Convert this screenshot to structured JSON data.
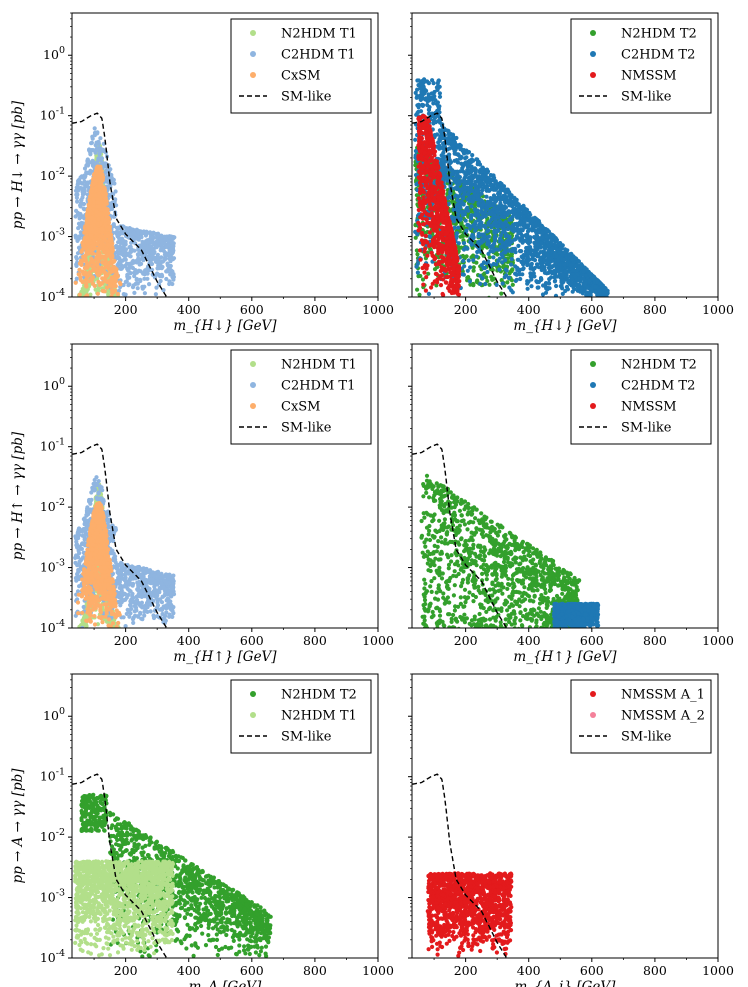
{
  "chart_data": [
    {
      "type": "scatter",
      "xlabel": "m_{H↓} [GeV]",
      "ylabel": "pp → H↓ → γγ [pb]",
      "xlim": [
        30,
        1000
      ],
      "ylim": [
        0.0001,
        5
      ],
      "yscale": "log",
      "x_ticks": [
        "200",
        "400",
        "600",
        "800",
        "1000"
      ],
      "y_ticks": [
        "10^-4",
        "10^-3",
        "10^-2",
        "10^-1",
        "10^0"
      ],
      "legend": "top-right",
      "series": [
        {
          "name": "N2HDM T1",
          "color": "#b2df8a",
          "kind": "points",
          "x_range": [
            50,
            180
          ],
          "peak": 0.035
        },
        {
          "name": "C2HDM T1",
          "color": "#8fb5e0",
          "kind": "points",
          "x_range": [
            40,
            355
          ],
          "peak": 0.035
        },
        {
          "name": "CxSM",
          "color": "#fdae6b",
          "kind": "points",
          "x_range": [
            30,
            200
          ],
          "peak": 0.015
        },
        {
          "name": "SM-like",
          "color": "#000000",
          "kind": "line",
          "x": [
            30,
            60,
            90,
            110,
            125,
            135,
            150,
            170,
            200,
            250,
            300,
            330
          ],
          "y": [
            0.075,
            0.08,
            0.1,
            0.11,
            0.09,
            0.04,
            0.008,
            0.002,
            0.0011,
            0.0006,
            0.00018,
            0.0001
          ]
        }
      ]
    },
    {
      "type": "scatter",
      "xlabel": "m_{H↓} [GeV]",
      "ylabel": "",
      "xlim": [
        30,
        1000
      ],
      "ylim": [
        0.0001,
        5
      ],
      "yscale": "log",
      "x_ticks": [
        "200",
        "400",
        "600",
        "800",
        "1000"
      ],
      "legend": "top-right",
      "series": [
        {
          "name": "N2HDM T2",
          "color": "#33a02c",
          "kind": "points",
          "x_range": [
            40,
            350
          ],
          "peak": 0.03
        },
        {
          "name": "C2HDM T2",
          "color": "#1f78b4",
          "kind": "points",
          "x_range": [
            40,
            650
          ],
          "peak": 0.4
        },
        {
          "name": "NMSSM",
          "color": "#e31a1c",
          "kind": "points",
          "x_range": [
            50,
            180
          ],
          "peak": 0.1
        },
        {
          "name": "SM-like",
          "color": "#000000",
          "kind": "line",
          "x": [
            30,
            60,
            90,
            110,
            125,
            135,
            150,
            170,
            200,
            250,
            300,
            330
          ],
          "y": [
            0.075,
            0.08,
            0.1,
            0.11,
            0.09,
            0.04,
            0.008,
            0.002,
            0.0011,
            0.0006,
            0.00018,
            0.0001
          ]
        }
      ]
    },
    {
      "type": "scatter",
      "xlabel": "m_{H↑} [GeV]",
      "ylabel": "pp → H↑ → γγ [pb]",
      "xlim": [
        30,
        1000
      ],
      "ylim": [
        0.0001,
        5
      ],
      "yscale": "log",
      "x_ticks": [
        "200",
        "400",
        "600",
        "800",
        "1000"
      ],
      "y_ticks": [
        "10^-4",
        "10^-3",
        "10^-2",
        "10^-1",
        "10^0"
      ],
      "legend": "top-right",
      "series": [
        {
          "name": "N2HDM T1",
          "color": "#b2df8a",
          "kind": "points",
          "x_range": [
            50,
            180
          ],
          "peak": 0.025
        },
        {
          "name": "C2HDM T1",
          "color": "#8fb5e0",
          "kind": "points",
          "x_range": [
            40,
            355
          ],
          "peak": 0.02
        },
        {
          "name": "CxSM",
          "color": "#fdae6b",
          "kind": "points",
          "x_range": [
            30,
            200
          ],
          "peak": 0.012
        },
        {
          "name": "SM-like",
          "color": "#000000",
          "kind": "line",
          "x": [
            30,
            60,
            90,
            110,
            125,
            135,
            150,
            170,
            200,
            250,
            300,
            330
          ],
          "y": [
            0.075,
            0.08,
            0.1,
            0.11,
            0.09,
            0.04,
            0.008,
            0.002,
            0.0011,
            0.0006,
            0.00018,
            0.0001
          ]
        }
      ]
    },
    {
      "type": "scatter",
      "xlabel": "m_{H↑} [GeV]",
      "ylabel": "",
      "xlim": [
        30,
        1000
      ],
      "ylim": [
        0.0001,
        5
      ],
      "yscale": "log",
      "x_ticks": [
        "200",
        "400",
        "600",
        "800",
        "1000"
      ],
      "legend": "top-right",
      "series": [
        {
          "name": "N2HDM T2",
          "color": "#33a02c",
          "kind": "points",
          "x_range": [
            60,
            560
          ],
          "peak": 0.05
        },
        {
          "name": "C2HDM T2",
          "color": "#1f78b4",
          "kind": "points",
          "x_range": [
            480,
            620
          ],
          "peak": 0.00025
        },
        {
          "name": "NMSSM",
          "color": "#e31a1c",
          "kind": "points",
          "x_range": [],
          "peak": 0
        },
        {
          "name": "SM-like",
          "color": "#000000",
          "kind": "line",
          "x": [
            30,
            60,
            90,
            110,
            125,
            135,
            150,
            170,
            200,
            250,
            300,
            330
          ],
          "y": [
            0.075,
            0.08,
            0.1,
            0.11,
            0.09,
            0.04,
            0.008,
            0.002,
            0.0011,
            0.0006,
            0.00018,
            0.0001
          ]
        }
      ]
    },
    {
      "type": "scatter",
      "xlabel": "m_A [GeV]",
      "ylabel": "pp → A → γγ [pb]",
      "xlim": [
        30,
        1000
      ],
      "ylim": [
        0.0001,
        5
      ],
      "yscale": "log",
      "x_ticks": [
        "200",
        "400",
        "600",
        "800",
        "1000"
      ],
      "y_ticks": [
        "10^-4",
        "10^-3",
        "10^-2",
        "10^-1",
        "10^0"
      ],
      "legend": "top-right",
      "series": [
        {
          "name": "N2HDM T2",
          "color": "#33a02c",
          "kind": "points",
          "x_range": [
            60,
            660
          ],
          "peak": 0.1
        },
        {
          "name": "N2HDM T1",
          "color": "#b2df8a",
          "kind": "points",
          "x_range": [
            40,
            350
          ],
          "peak": 0.004
        },
        {
          "name": "SM-like",
          "color": "#000000",
          "kind": "line",
          "x": [
            30,
            60,
            90,
            110,
            125,
            135,
            150,
            170,
            200,
            250,
            300,
            330
          ],
          "y": [
            0.075,
            0.08,
            0.1,
            0.11,
            0.09,
            0.04,
            0.008,
            0.002,
            0.0011,
            0.0006,
            0.00018,
            0.0001
          ]
        }
      ]
    },
    {
      "type": "scatter",
      "xlabel": "m_{A_i} [GeV]",
      "ylabel": "",
      "xlim": [
        30,
        1000
      ],
      "ylim": [
        0.0001,
        5
      ],
      "yscale": "log",
      "x_ticks": [
        "200",
        "400",
        "600",
        "800",
        "1000"
      ],
      "legend": "top-right",
      "series": [
        {
          "name": "NMSSM A_1",
          "color": "#e31a1c",
          "kind": "points",
          "x_range": [
            80,
            345
          ],
          "peak": 0.005
        },
        {
          "name": "NMSSM A_2",
          "color": "#f4819a",
          "kind": "points",
          "x_range": [],
          "peak": 0
        },
        {
          "name": "SM-like",
          "color": "#000000",
          "kind": "line",
          "x": [
            30,
            60,
            90,
            110,
            125,
            135,
            150,
            170,
            200,
            250,
            300,
            330
          ],
          "y": [
            0.075,
            0.08,
            0.1,
            0.11,
            0.09,
            0.04,
            0.008,
            0.002,
            0.0011,
            0.0006,
            0.00018,
            0.0001
          ]
        }
      ]
    }
  ]
}
